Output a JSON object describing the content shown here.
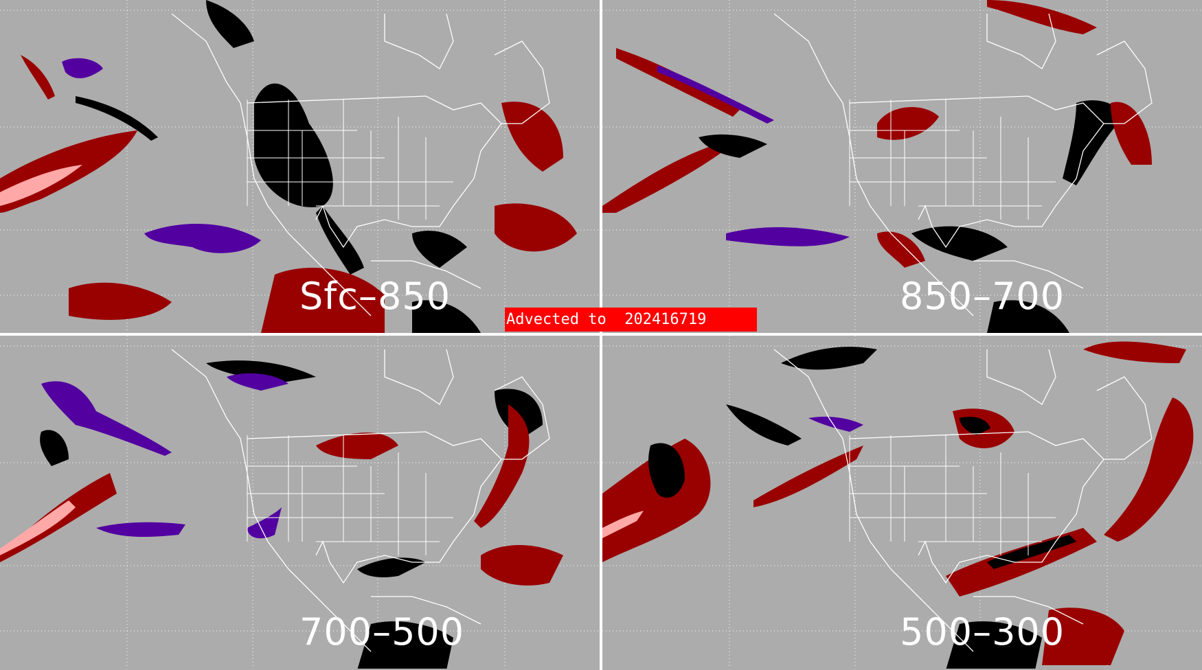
{
  "title_banner": {
    "prefix": "Advected to",
    "value": "202416719"
  },
  "panels": [
    {
      "label": "Sfc–850"
    },
    {
      "label": "850–700"
    },
    {
      "label": "700–500"
    },
    {
      "label": "500–300"
    }
  ],
  "colors": {
    "background": "#acacac",
    "dark_red": "#990000",
    "pink": "#ffa8a8",
    "red": "#ff0000",
    "purple": "#5200a0",
    "black": "#000000",
    "boundaries": "#ffffff"
  },
  "map": {
    "region": "North America and North Pacific",
    "gridlines": "dotted",
    "layout": "2x2 panels"
  }
}
